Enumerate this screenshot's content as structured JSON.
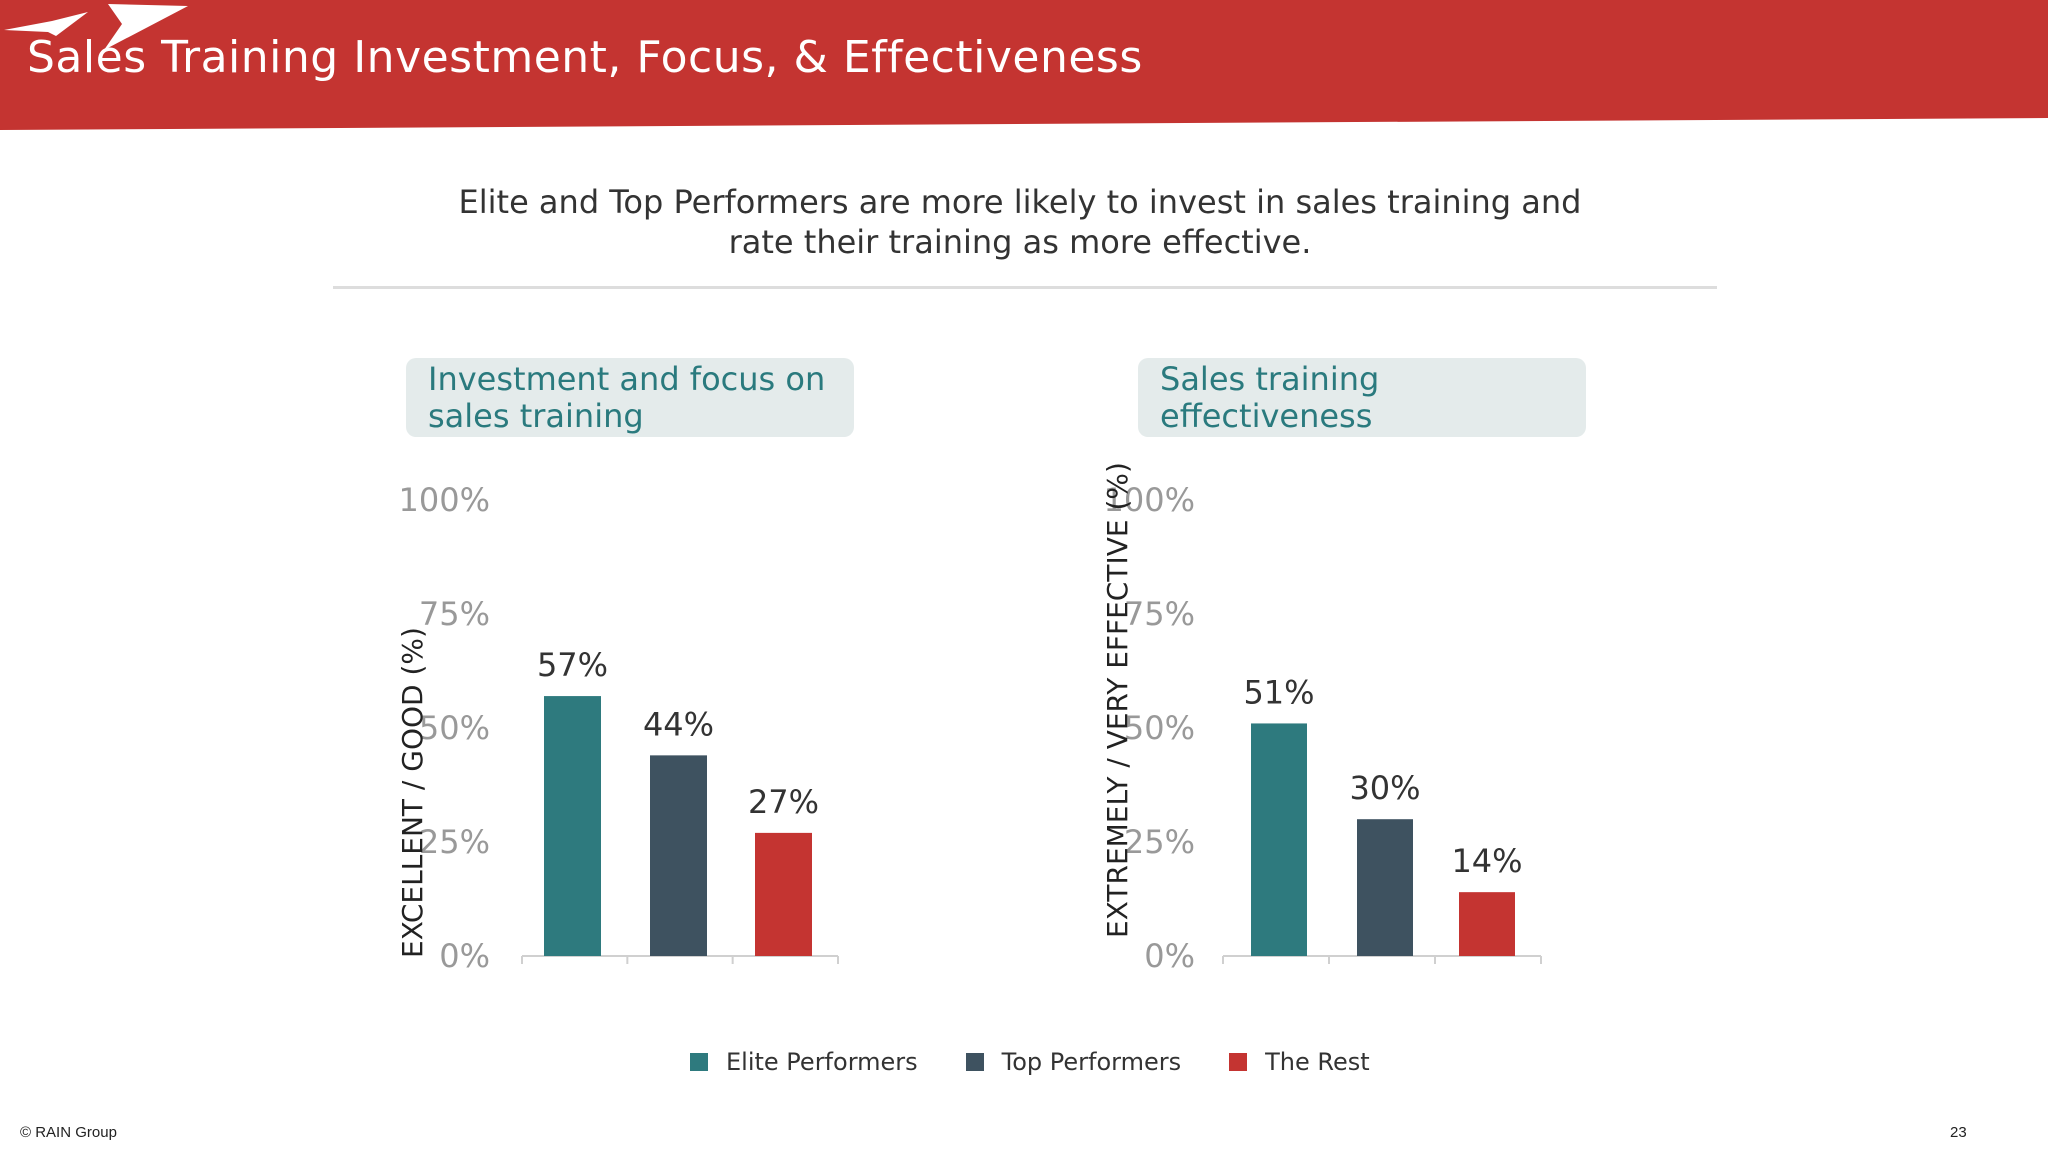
{
  "header": {
    "title": "Sales Training Investment, Focus, & Effectiveness",
    "bg_color": "#c43431"
  },
  "subtitle": {
    "line1": "Elite and Top Performers  are more likely to invest in sales training and",
    "line2": "rate their training as more effective."
  },
  "legend": [
    {
      "label": "Elite Performers",
      "color": "#2e7a7e"
    },
    {
      "label": "Top  Performers",
      "color": "#3e5260"
    },
    {
      "label": "The Rest",
      "color": "#c43431"
    }
  ],
  "footer": {
    "copyright": "© RAIN Group",
    "page_number": "23"
  },
  "chart_data": [
    {
      "type": "bar",
      "title": "Investment and focus on\nsales training",
      "ylabel": "EXCELLENT / GOOD (%)",
      "categories": [
        "Elite Performers",
        "Top  Performers",
        "The Rest"
      ],
      "values": [
        57,
        44,
        27
      ],
      "value_labels": [
        "57%",
        "44%",
        "27%"
      ],
      "colors": [
        "#2e7a7e",
        "#3e5260",
        "#c43431"
      ],
      "ylim": [
        0,
        100
      ],
      "yticks": [
        0,
        25,
        50,
        75,
        100
      ],
      "ytick_labels": [
        "0%",
        "25%",
        "50%",
        "75%",
        "100%"
      ],
      "grid": false
    },
    {
      "type": "bar",
      "title": "Sales training effectiveness",
      "ylabel": "EXTREMELY / VERY EFFECTIVE (%)",
      "categories": [
        "Elite Performers",
        "Top  Performers",
        "The Rest"
      ],
      "values": [
        51,
        30,
        14
      ],
      "value_labels": [
        "51%",
        "30%",
        "14%"
      ],
      "colors": [
        "#2e7a7e",
        "#3e5260",
        "#c43431"
      ],
      "ylim": [
        0,
        100
      ],
      "yticks": [
        0,
        25,
        50,
        75,
        100
      ],
      "ytick_labels": [
        "0%",
        "25%",
        "50%",
        "75%",
        "100%"
      ],
      "grid": false
    }
  ]
}
